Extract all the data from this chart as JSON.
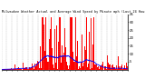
{
  "title": "Milwaukee Weather Actual and Average Wind Speed by Minute mph (Last 24 Hours)",
  "bar_color": "#ff0000",
  "line_color": "#0000ff",
  "background_color": "#ffffff",
  "plot_bg_color": "#ffffff",
  "grid_color": "#aaaaaa",
  "ylim": [
    0,
    35
  ],
  "yticks": [
    5,
    10,
    15,
    20,
    25,
    30,
    35
  ],
  "n_points": 1440,
  "seed": 42
}
